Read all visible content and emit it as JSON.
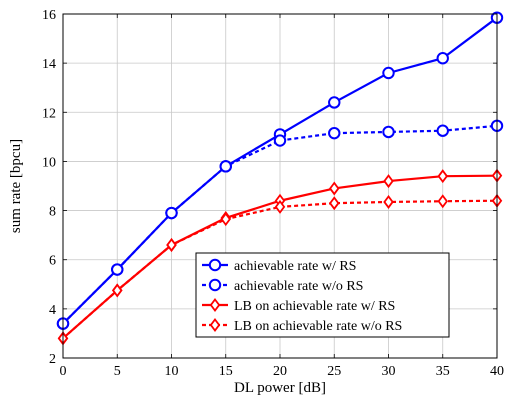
{
  "chart_data": {
    "type": "line",
    "title": "",
    "xlabel": "DL power [dB]",
    "ylabel": "sum rate [bpcu]",
    "x": [
      0,
      5,
      10,
      15,
      20,
      25,
      30,
      35,
      40
    ],
    "xlim": [
      0,
      40
    ],
    "ylim": [
      2,
      16
    ],
    "xticks": [
      0,
      5,
      10,
      15,
      20,
      25,
      30,
      35,
      40
    ],
    "yticks": [
      2,
      4,
      6,
      8,
      10,
      12,
      14,
      16
    ],
    "grid": true,
    "legend_position": "bottom-right",
    "series": [
      {
        "name": "achievable rate w/ RS",
        "color": "#0000ff",
        "dashed": false,
        "marker": "circle",
        "values": [
          3.4,
          5.6,
          7.9,
          9.8,
          11.1,
          12.4,
          13.6,
          14.2,
          15.85
        ]
      },
      {
        "name": "achievable rate w/o RS",
        "color": "#0000ff",
        "dashed": true,
        "marker": "circle",
        "values": [
          3.4,
          5.6,
          7.9,
          9.8,
          10.85,
          11.15,
          11.2,
          11.25,
          11.45
        ]
      },
      {
        "name": "LB on achievable rate w/ RS",
        "color": "#ff0000",
        "dashed": false,
        "marker": "diamond",
        "values": [
          2.8,
          4.75,
          6.6,
          7.7,
          8.4,
          8.9,
          9.2,
          9.4,
          9.42
        ]
      },
      {
        "name": "LB on achievable rate w/o RS",
        "color": "#ff0000",
        "dashed": true,
        "marker": "diamond",
        "values": [
          2.8,
          4.75,
          6.6,
          7.65,
          8.15,
          8.3,
          8.35,
          8.38,
          8.4
        ]
      }
    ]
  }
}
